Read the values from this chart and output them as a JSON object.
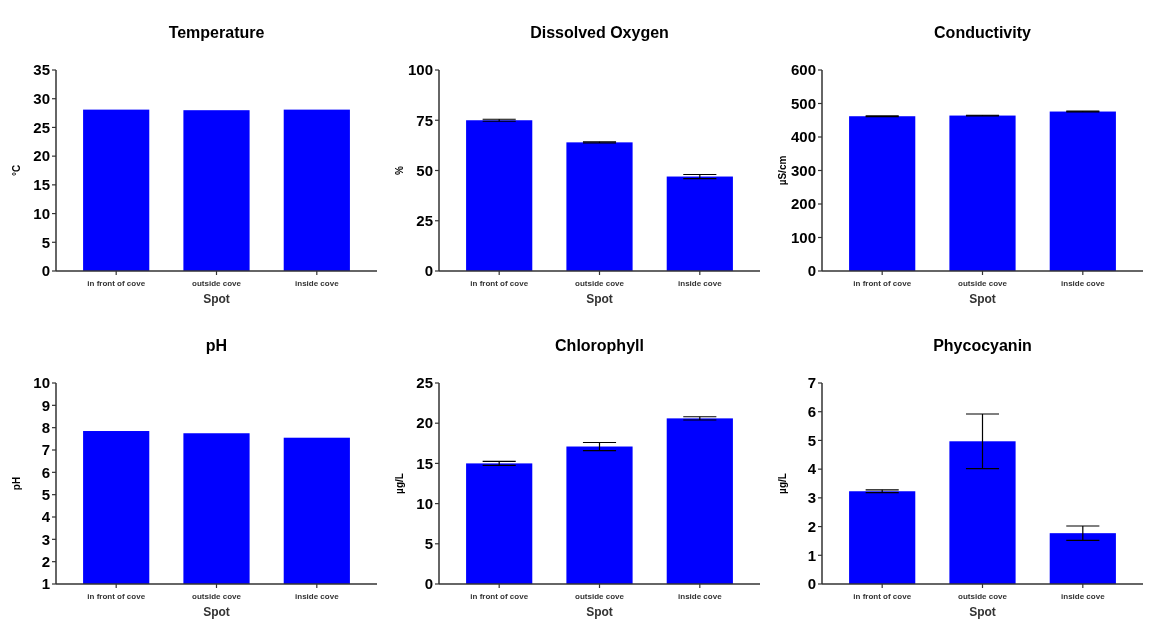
{
  "chart_data": [
    {
      "type": "bar",
      "title": "Temperature",
      "xlabel": "Spot",
      "ylabel": "°C",
      "categories": [
        "in front of cove",
        "outside cove",
        "inside cove"
      ],
      "values": [
        28.1,
        28.0,
        28.1
      ],
      "color": "#0000ff",
      "ylim": [
        0,
        35
      ],
      "yticks": [
        0,
        5,
        10,
        15,
        20,
        25,
        30,
        35
      ]
    },
    {
      "type": "bar",
      "title": "Dissolved Oxygen",
      "xlabel": "Spot",
      "ylabel": "%",
      "categories": [
        "in front of cove",
        "outside cove",
        "inside cove"
      ],
      "values": [
        75,
        64,
        47
      ],
      "errors": [
        0.5,
        0.3,
        1
      ],
      "color": "#0000ff",
      "ylim": [
        0,
        100
      ],
      "yticks": [
        0,
        25,
        50,
        75,
        100
      ]
    },
    {
      "type": "bar",
      "title": "Conductivity",
      "xlabel": "Spot",
      "ylabel": "µS/cm",
      "categories": [
        "in front of cove",
        "outside cove",
        "inside cove"
      ],
      "values": [
        462,
        464,
        476
      ],
      "errors": [
        1,
        1,
        1
      ],
      "color": "#0000ff",
      "ylim": [
        0,
        600
      ],
      "yticks": [
        0,
        100,
        200,
        300,
        400,
        500,
        600
      ]
    },
    {
      "type": "bar",
      "title": "pH",
      "xlabel": "Spot",
      "ylabel": "pH",
      "categories": [
        "in front of cove",
        "outside cove",
        "inside cove"
      ],
      "values": [
        7.85,
        7.75,
        7.55
      ],
      "color": "#0000ff",
      "ylim": [
        1,
        10
      ],
      "yticks": [
        1,
        2,
        3,
        4,
        5,
        6,
        7,
        8,
        9,
        10
      ]
    },
    {
      "type": "bar",
      "title": "Chlorophyll",
      "xlabel": "Spot",
      "ylabel": "µg/L",
      "categories": [
        "in front of cove",
        "outside cove",
        "inside cove"
      ],
      "values": [
        15.0,
        17.1,
        20.6
      ],
      "errors": [
        0.25,
        0.5,
        0.2
      ],
      "color": "#0000ff",
      "ylim": [
        0,
        25
      ],
      "yticks": [
        0,
        5,
        10,
        15,
        20,
        25
      ]
    },
    {
      "type": "bar",
      "title": "Phycocyanin",
      "xlabel": "Spot",
      "ylabel": "µg/L",
      "categories": [
        "in front of cove",
        "outside cove",
        "inside cove"
      ],
      "values": [
        3.23,
        4.97,
        1.77
      ],
      "errors": [
        0.05,
        0.95,
        0.25
      ],
      "color": "#0000ff",
      "ylim": [
        0,
        7
      ],
      "yticks": [
        0,
        1,
        2,
        3,
        4,
        5,
        6,
        7
      ]
    }
  ]
}
